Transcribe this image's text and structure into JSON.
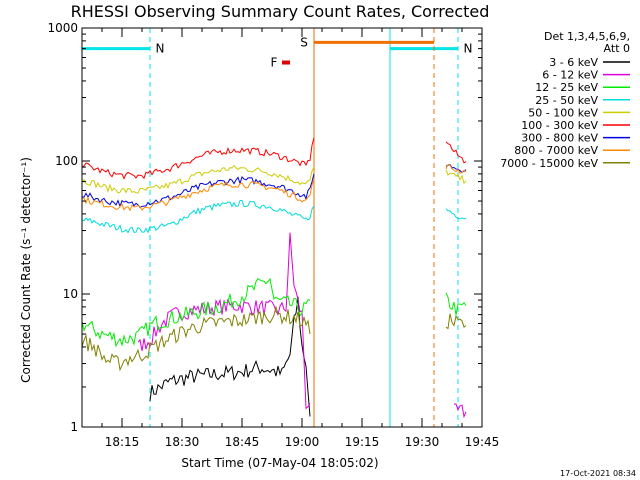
{
  "chart_data": {
    "type": "line",
    "title": "RHESSI Observing Summary Count Rates, Corrected",
    "xlabel": "Start Time (07-May-04 18:05:02)",
    "ylabel": "Corrected Count Rate (s⁻¹ detector⁻¹)",
    "yscale": "log",
    "ylim": [
      1,
      1000
    ],
    "xlim_minutes": [
      0,
      100
    ],
    "x_ticks": [
      "18:15",
      "18:30",
      "18:45",
      "19:00",
      "19:15",
      "19:30",
      "19:45"
    ],
    "y_ticks": [
      "1",
      "10",
      "100",
      "1000"
    ],
    "legend_header": [
      "Det 1,3,4,5,6,9,",
      "Att 0"
    ],
    "legend_position": "right",
    "footer": "17-Oct-2021 08:34",
    "flags": [
      {
        "label": "N",
        "color": "#00e5e5",
        "type": "night",
        "x_start": 0,
        "x_end": 17,
        "y": 700
      },
      {
        "label": "N",
        "color": "#00e5e5",
        "type": "night",
        "x_start": 77,
        "x_end": 94,
        "y": 700
      },
      {
        "label": "S",
        "color": "#ee7000",
        "type": "saa",
        "x_start": 58,
        "x_end": 88,
        "y": 780
      },
      {
        "label": "F",
        "color": "#dd0000",
        "type": "flare",
        "x_start": 50,
        "x_end": 52,
        "y": 550
      }
    ],
    "series": [
      {
        "name": "3 - 6 keV",
        "color": "#000000",
        "x": [
          17,
          22,
          28,
          34,
          40,
          44,
          47,
          50,
          52,
          53,
          54,
          55,
          56,
          57
        ],
        "y": [
          1.8,
          2.2,
          2.4,
          2.5,
          2.6,
          2.8,
          2.7,
          2.5,
          3.5,
          6,
          9,
          4,
          3,
          1.2
        ]
      },
      {
        "name": "6 - 12 keV",
        "color": "#dd00dd",
        "x": [
          14,
          17,
          20,
          23,
          27,
          31,
          35,
          39,
          43,
          47,
          49,
          51,
          52,
          53,
          54,
          55,
          56,
          57
        ],
        "y": [
          4,
          4.5,
          6,
          7,
          7.5,
          7.8,
          8,
          8.2,
          8,
          7.8,
          7.5,
          8,
          26,
          12,
          8.5,
          7,
          1.5,
          1.5
        ],
        "x2": [
          93,
          94,
          95,
          96
        ],
        "y2": [
          1.3,
          1.3,
          1.3,
          1.3
        ]
      },
      {
        "name": "12 - 25 keV",
        "color": "#00ee00",
        "x": [
          0,
          5,
          10,
          14,
          18,
          22,
          26,
          30,
          34,
          38,
          42,
          45,
          47,
          48,
          51,
          54,
          55,
          56,
          57
        ],
        "y": [
          6,
          5,
          4.5,
          4.8,
          6,
          6.5,
          7,
          7.5,
          8,
          9,
          10.5,
          12,
          13,
          9,
          8.5,
          8,
          7.5,
          8,
          9
        ],
        "x2": [
          91,
          92,
          93,
          94,
          95,
          96
        ],
        "y2": [
          9,
          8.5,
          8,
          7.5,
          8,
          8.2
        ]
      },
      {
        "name": "25 - 50 keV",
        "color": "#00dddd",
        "x": [
          0,
          3,
          6,
          10,
          14,
          17,
          20,
          22,
          25,
          28,
          31,
          34,
          37,
          40,
          43,
          46,
          49,
          51,
          53,
          55,
          56,
          57,
          58
        ],
        "y": [
          36,
          35,
          33,
          31,
          30,
          31,
          32,
          33,
          37,
          41,
          44,
          46,
          47,
          48,
          47,
          46,
          44,
          41,
          39,
          37,
          36,
          39,
          46
        ],
        "x2": [
          91,
          92,
          93,
          94,
          95,
          96
        ],
        "y2": [
          43,
          42,
          40,
          39,
          38,
          37
        ]
      },
      {
        "name": "50 - 100 keV",
        "color": "#cccc00",
        "x": [
          0,
          3,
          6,
          10,
          14,
          17,
          20,
          22,
          25,
          28,
          31,
          34,
          37,
          40,
          43,
          46,
          49,
          51,
          53,
          55,
          56,
          57,
          58
        ],
        "y": [
          72,
          68,
          63,
          60,
          59,
          61,
          64,
          66,
          71,
          77,
          82,
          85,
          88,
          88,
          86,
          83,
          79,
          75,
          72,
          68,
          66,
          72,
          90
        ],
        "x2": [
          91,
          92,
          93,
          94,
          95,
          96
        ],
        "y2": [
          84,
          80,
          77,
          75,
          73,
          71
        ]
      },
      {
        "name": "100 - 300 keV",
        "color": "#ff0000",
        "x": [
          0,
          3,
          6,
          10,
          14,
          17,
          20,
          22,
          25,
          28,
          31,
          34,
          37,
          40,
          43,
          46,
          49,
          51,
          53,
          55,
          56,
          57,
          58
        ],
        "y": [
          95,
          88,
          82,
          78,
          77,
          80,
          85,
          88,
          96,
          104,
          112,
          117,
          120,
          121,
          119,
          115,
          110,
          105,
          100,
          95,
          92,
          105,
          150
        ],
        "x2": [
          91,
          92,
          93,
          94,
          95,
          96
        ],
        "y2": [
          145,
          130,
          118,
          110,
          104,
          99
        ]
      },
      {
        "name": "300 - 800 keV",
        "color": "#0000dd",
        "x": [
          0,
          3,
          6,
          10,
          14,
          17,
          20,
          22,
          25,
          28,
          31,
          34,
          37,
          40,
          43,
          46,
          49,
          51,
          53,
          55,
          56,
          57,
          58
        ],
        "y": [
          56,
          53,
          50,
          48,
          47,
          49,
          51,
          53,
          57,
          62,
          66,
          69,
          71,
          72,
          71,
          68,
          65,
          62,
          59,
          56,
          54,
          60,
          80
        ],
        "x2": [
          91,
          92,
          93,
          94,
          95,
          96
        ],
        "y2": [
          95,
          92,
          90,
          88,
          87,
          86
        ]
      },
      {
        "name": "800 - 7000 keV",
        "color": "#ff8800",
        "x": [
          0,
          3,
          6,
          10,
          14,
          17,
          20,
          22,
          25,
          28,
          31,
          34,
          37,
          40,
          43,
          46,
          49,
          51,
          53,
          55,
          56,
          57,
          58
        ],
        "y": [
          52,
          49,
          47,
          45,
          44,
          46,
          48,
          50,
          54,
          58,
          62,
          65,
          67,
          67,
          66,
          64,
          61,
          58,
          55,
          52,
          50,
          56,
          72
        ],
        "x2": [
          91,
          92,
          93,
          94,
          95,
          96
        ],
        "y2": [
          92,
          89,
          87,
          85,
          84,
          83
        ]
      },
      {
        "name": "7000 - 15000 keV",
        "color": "#808000",
        "x": [
          0,
          3,
          6,
          9,
          12,
          15,
          18,
          21,
          24,
          27,
          30,
          33,
          36,
          39,
          42,
          45,
          48,
          51,
          54,
          56,
          57
        ],
        "y": [
          4.5,
          4,
          3.2,
          3,
          3.3,
          3.5,
          4,
          4.5,
          5,
          5.5,
          5.8,
          6,
          6.2,
          6.3,
          6.5,
          6.8,
          7,
          6.8,
          6.5,
          6,
          5
        ],
        "x2": [
          91,
          92,
          93,
          94,
          95,
          96
        ],
        "y2": [
          6,
          6.5,
          6,
          6.2,
          6,
          5.8
        ]
      }
    ]
  }
}
